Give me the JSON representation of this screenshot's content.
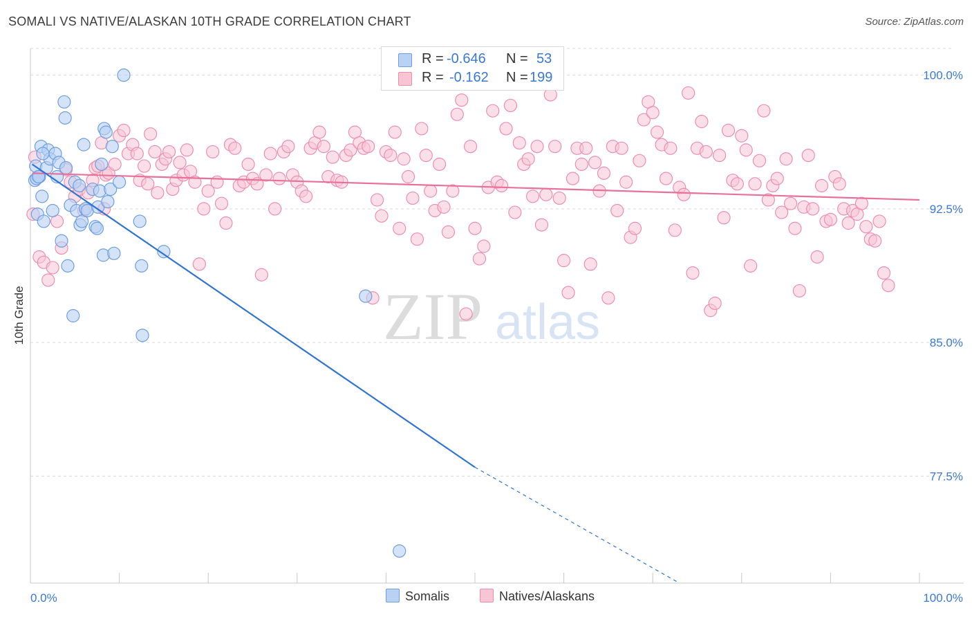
{
  "title": "SOMALI VS NATIVE/ALASKAN 10TH GRADE CORRELATION CHART",
  "source": "Source: ZipAtlas.com",
  "watermark": {
    "zip": "ZIP",
    "atlas": "atlas"
  },
  "colors": {
    "somali_fill": "#b9d1f3",
    "somali_stroke": "#6d9ee0",
    "somali_line": "#2f74d0",
    "native_fill": "#f8c5d5",
    "native_stroke": "#ec8fae",
    "native_line": "#e8709a",
    "axis_label": "#3a78d4",
    "grid": "#d9d9d9"
  },
  "legend_top": [
    {
      "r_label": "R =",
      "r_value": "-0.646",
      "n_label": "N =",
      "n_value": "53"
    },
    {
      "r_label": "R =",
      "r_value": "-0.162",
      "n_label": "N =",
      "n_value": "199"
    }
  ],
  "legend_bottom": [
    "Somalis",
    "Natives/Alaskans"
  ],
  "chart_data": {
    "type": "scatter",
    "title": "SOMALI VS NATIVE/ALASKAN 10TH GRADE CORRELATION CHART",
    "xlabel": "",
    "ylabel": "10th Grade",
    "xlim": [
      0,
      100
    ],
    "ylim": [
      71.5,
      101.5
    ],
    "x_tick_labels": [
      "0.0%",
      "100.0%"
    ],
    "y_ticks": [
      77.5,
      85.0,
      92.5,
      100.0
    ],
    "y_tick_labels": [
      "77.5%",
      "85.0%",
      "92.5%",
      "100.0%"
    ],
    "grid": true,
    "legend_position": "top-center",
    "series": [
      {
        "name": "Somalis",
        "r": -0.646,
        "n": 53,
        "trend": {
          "x": [
            0.2,
            50
          ],
          "y": [
            95.0,
            78.0
          ],
          "dashed_to": [
            73.0,
            71.5
          ]
        },
        "points": [
          [
            0.5,
            94.1
          ],
          [
            0.6,
            94.9
          ],
          [
            0.7,
            94.2
          ],
          [
            0.8,
            92.2
          ],
          [
            1.0,
            94.3
          ],
          [
            1.2,
            96.0
          ],
          [
            1.3,
            93.2
          ],
          [
            1.5,
            91.8
          ],
          [
            1.8,
            94.8
          ],
          [
            2.0,
            95.8
          ],
          [
            2.2,
            95.3
          ],
          [
            2.5,
            92.4
          ],
          [
            2.8,
            95.6
          ],
          [
            3.0,
            94.3
          ],
          [
            3.2,
            95.1
          ],
          [
            3.5,
            90.7
          ],
          [
            3.8,
            98.5
          ],
          [
            3.9,
            97.6
          ],
          [
            4.0,
            94.8
          ],
          [
            4.2,
            89.3
          ],
          [
            4.5,
            92.7
          ],
          [
            4.8,
            86.5
          ],
          [
            5.0,
            94.0
          ],
          [
            5.2,
            92.4
          ],
          [
            5.5,
            93.8
          ],
          [
            5.6,
            91.6
          ],
          [
            5.8,
            91.8
          ],
          [
            6.0,
            96.1
          ],
          [
            6.2,
            92.5
          ],
          [
            6.4,
            92.4
          ],
          [
            7.0,
            93.6
          ],
          [
            7.3,
            91.5
          ],
          [
            7.5,
            91.4
          ],
          [
            7.6,
            92.6
          ],
          [
            7.8,
            93.5
          ],
          [
            8.0,
            95.0
          ],
          [
            8.2,
            89.9
          ],
          [
            8.3,
            97.0
          ],
          [
            8.5,
            96.8
          ],
          [
            8.7,
            92.9
          ],
          [
            9.0,
            93.6
          ],
          [
            9.2,
            96.0
          ],
          [
            9.4,
            90.0
          ],
          [
            10.0,
            94.0
          ],
          [
            10.5,
            100.0
          ],
          [
            12.3,
            91.8
          ],
          [
            12.5,
            89.3
          ],
          [
            12.6,
            85.4
          ],
          [
            15.0,
            90.1
          ],
          [
            37.7,
            87.6
          ],
          [
            41.5,
            73.3
          ],
          [
            1.4,
            95.6
          ],
          [
            0.9,
            94.3
          ]
        ]
      },
      {
        "name": "Natives/Alaskans",
        "r": -0.162,
        "n": 199,
        "trend": {
          "x": [
            0.2,
            100
          ],
          "y": [
            94.5,
            93.0
          ]
        },
        "points": [
          [
            0.3,
            92.2
          ],
          [
            0.5,
            95.4
          ],
          [
            1.0,
            89.8
          ],
          [
            1.5,
            89.5
          ],
          [
            2.0,
            88.5
          ],
          [
            2.5,
            89.2
          ],
          [
            3.0,
            91.8
          ],
          [
            3.5,
            90.3
          ],
          [
            4.0,
            94.7
          ],
          [
            4.5,
            94.0
          ],
          [
            5.0,
            93.2
          ],
          [
            5.5,
            93.6
          ],
          [
            6.0,
            92.4
          ],
          [
            6.5,
            93.4
          ],
          [
            7.0,
            94.1
          ],
          [
            7.3,
            94.8
          ],
          [
            7.6,
            94.9
          ],
          [
            8.0,
            96.2
          ],
          [
            8.3,
            92.5
          ],
          [
            8.5,
            94.4
          ],
          [
            8.8,
            94.5
          ],
          [
            9.5,
            95.0
          ],
          [
            10.0,
            96.6
          ],
          [
            10.5,
            96.9
          ],
          [
            11.0,
            95.6
          ],
          [
            11.5,
            96.1
          ],
          [
            12.0,
            95.6
          ],
          [
            12.3,
            94.1
          ],
          [
            12.8,
            94.9
          ],
          [
            13.2,
            93.9
          ],
          [
            13.5,
            96.7
          ],
          [
            14.0,
            95.7
          ],
          [
            14.3,
            93.4
          ],
          [
            14.8,
            95.0
          ],
          [
            15.2,
            95.3
          ],
          [
            15.6,
            95.7
          ],
          [
            16.0,
            93.6
          ],
          [
            16.4,
            94.1
          ],
          [
            16.8,
            95.1
          ],
          [
            17.2,
            94.4
          ],
          [
            17.6,
            95.8
          ],
          [
            18.0,
            94.6
          ],
          [
            18.5,
            94.0
          ],
          [
            19.0,
            89.4
          ],
          [
            19.5,
            92.5
          ],
          [
            20.0,
            93.5
          ],
          [
            20.5,
            95.7
          ],
          [
            21.0,
            94.0
          ],
          [
            21.5,
            92.8
          ],
          [
            22.0,
            91.7
          ],
          [
            22.5,
            96.1
          ],
          [
            23.0,
            95.9
          ],
          [
            23.5,
            93.8
          ],
          [
            24.0,
            94.0
          ],
          [
            24.5,
            95.0
          ],
          [
            25.0,
            94.2
          ],
          [
            25.5,
            93.9
          ],
          [
            26.0,
            88.8
          ],
          [
            26.5,
            94.4
          ],
          [
            27.0,
            95.6
          ],
          [
            27.5,
            92.5
          ],
          [
            28.0,
            94.2
          ],
          [
            28.5,
            95.7
          ],
          [
            29.0,
            96.0
          ],
          [
            29.5,
            94.4
          ],
          [
            30.0,
            94.0
          ],
          [
            30.5,
            93.5
          ],
          [
            31.0,
            93.2
          ],
          [
            31.5,
            95.9
          ],
          [
            32.0,
            96.2
          ],
          [
            32.5,
            96.8
          ],
          [
            33.0,
            96.0
          ],
          [
            33.5,
            94.3
          ],
          [
            34.0,
            95.4
          ],
          [
            34.5,
            94.1
          ],
          [
            35.0,
            94.0
          ],
          [
            35.5,
            95.5
          ],
          [
            36.0,
            95.8
          ],
          [
            36.5,
            96.8
          ],
          [
            37.0,
            96.2
          ],
          [
            37.5,
            95.9
          ],
          [
            38.0,
            96.0
          ],
          [
            38.5,
            87.5
          ],
          [
            39.0,
            93.0
          ],
          [
            39.5,
            92.1
          ],
          [
            40.0,
            95.7
          ],
          [
            40.5,
            95.5
          ],
          [
            41.0,
            96.8
          ],
          [
            41.5,
            91.4
          ],
          [
            42.0,
            95.3
          ],
          [
            42.5,
            94.3
          ],
          [
            43.0,
            93.1
          ],
          [
            43.5,
            90.8
          ],
          [
            44.0,
            97.0
          ],
          [
            44.5,
            95.5
          ],
          [
            45.0,
            93.5
          ],
          [
            45.5,
            92.4
          ],
          [
            46.0,
            95.0
          ],
          [
            46.5,
            92.6
          ],
          [
            47.0,
            91.2
          ],
          [
            47.5,
            93.5
          ],
          [
            48.0,
            97.8
          ],
          [
            48.5,
            98.6
          ],
          [
            49.0,
            86.6
          ],
          [
            49.5,
            96.0
          ],
          [
            50.0,
            91.4
          ],
          [
            50.5,
            89.7
          ],
          [
            51.0,
            90.4
          ],
          [
            51.5,
            93.7
          ],
          [
            52.0,
            98.0
          ],
          [
            52.5,
            94.0
          ],
          [
            53.0,
            93.8
          ],
          [
            53.5,
            97.0
          ],
          [
            54.0,
            98.3
          ],
          [
            54.5,
            92.3
          ],
          [
            55.0,
            96.2
          ],
          [
            55.5,
            95.0
          ],
          [
            56.0,
            95.3
          ],
          [
            56.5,
            93.2
          ],
          [
            57.0,
            96.0
          ],
          [
            57.5,
            91.6
          ],
          [
            58.0,
            93.3
          ],
          [
            58.5,
            98.9
          ],
          [
            59.0,
            96.0
          ],
          [
            59.5,
            93.1
          ],
          [
            60.0,
            89.6
          ],
          [
            60.5,
            87.8
          ],
          [
            61.0,
            94.2
          ],
          [
            61.5,
            95.9
          ],
          [
            62.0,
            95.0
          ],
          [
            62.5,
            95.9
          ],
          [
            63.0,
            89.4
          ],
          [
            63.5,
            95.1
          ],
          [
            64.0,
            93.5
          ],
          [
            64.5,
            94.5
          ],
          [
            65.0,
            87.5
          ],
          [
            65.5,
            96.0
          ],
          [
            66.0,
            92.4
          ],
          [
            66.5,
            95.9
          ],
          [
            67.0,
            94.0
          ],
          [
            67.5,
            90.9
          ],
          [
            68.0,
            91.4
          ],
          [
            68.5,
            95.2
          ],
          [
            69.0,
            97.5
          ],
          [
            69.5,
            98.5
          ],
          [
            70.0,
            97.9
          ],
          [
            70.5,
            96.8
          ],
          [
            71.0,
            96.1
          ],
          [
            71.5,
            94.2
          ],
          [
            72.0,
            95.9
          ],
          [
            72.5,
            91.3
          ],
          [
            73.0,
            93.7
          ],
          [
            73.5,
            93.3
          ],
          [
            74.0,
            99.0
          ],
          [
            74.5,
            88.9
          ],
          [
            75.0,
            95.9
          ],
          [
            75.5,
            97.4
          ],
          [
            76.0,
            95.7
          ],
          [
            76.5,
            86.8
          ],
          [
            77.0,
            87.2
          ],
          [
            77.5,
            95.5
          ],
          [
            78.0,
            92.0
          ],
          [
            78.5,
            96.9
          ],
          [
            79.0,
            94.1
          ],
          [
            79.5,
            93.9
          ],
          [
            80.0,
            96.6
          ],
          [
            80.5,
            95.8
          ],
          [
            81.0,
            89.3
          ],
          [
            81.5,
            93.9
          ],
          [
            82.0,
            95.2
          ],
          [
            82.5,
            98.0
          ],
          [
            83.0,
            93.0
          ],
          [
            83.5,
            93.8
          ],
          [
            84.0,
            94.2
          ],
          [
            84.5,
            92.3
          ],
          [
            85.0,
            95.3
          ],
          [
            85.5,
            92.8
          ],
          [
            86.0,
            91.4
          ],
          [
            86.5,
            87.9
          ],
          [
            87.0,
            92.6
          ],
          [
            87.5,
            95.5
          ],
          [
            88.0,
            92.5
          ],
          [
            88.5,
            89.8
          ],
          [
            89.0,
            93.8
          ],
          [
            89.5,
            91.8
          ],
          [
            90.0,
            91.9
          ],
          [
            90.5,
            94.3
          ],
          [
            91.0,
            93.9
          ],
          [
            91.5,
            92.5
          ],
          [
            92.0,
            91.7
          ],
          [
            92.5,
            92.4
          ],
          [
            93.0,
            92.2
          ],
          [
            93.5,
            92.8
          ],
          [
            94.0,
            91.5
          ],
          [
            94.5,
            90.8
          ],
          [
            95.0,
            90.7
          ],
          [
            95.5,
            91.8
          ],
          [
            96.0,
            88.9
          ],
          [
            96.5,
            88.2
          ]
        ]
      }
    ]
  }
}
